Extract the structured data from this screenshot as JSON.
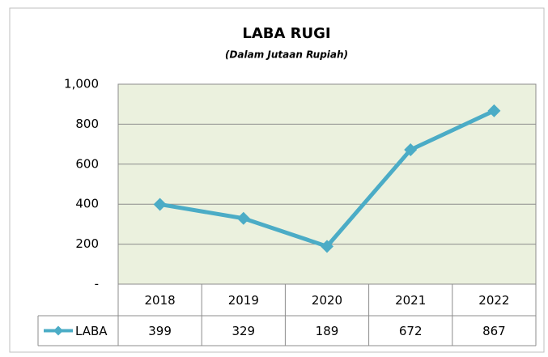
{
  "chart_data": {
    "type": "line",
    "title": "LABA RUGI",
    "subtitle": "(Dalam Jutaan Rupiah)",
    "categories": [
      "2018",
      "2019",
      "2020",
      "2021",
      "2022"
    ],
    "series": [
      {
        "name": "LABA",
        "color": "#4bacc6",
        "values": [
          399,
          329,
          189,
          672,
          867
        ]
      }
    ],
    "ylim": [
      0,
      1000
    ],
    "yticks": [
      {
        "value": 0,
        "label": "-"
      },
      200,
      400,
      600,
      800,
      {
        "value": 1000,
        "label": "1,000"
      }
    ],
    "grid": true,
    "plot_background": "#ebf1de"
  }
}
